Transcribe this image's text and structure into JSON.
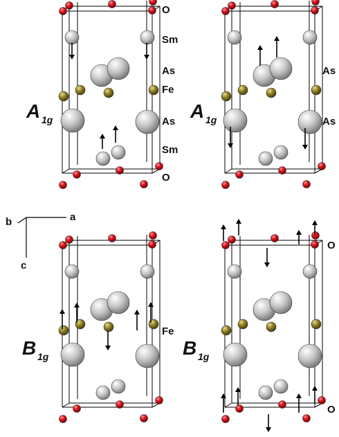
{
  "panels": [
    {
      "mode": {
        "main": "A",
        "sub": "1g"
      },
      "labels": [
        "O",
        "Sm",
        "As",
        "Fe",
        "As",
        "Sm",
        "O"
      ]
    },
    {
      "mode": {
        "main": "A",
        "sub": "1g"
      },
      "labels": [
        "As",
        "As"
      ]
    },
    {
      "mode": {
        "main": "B",
        "sub": "1g"
      },
      "labels": [
        "Fe"
      ]
    },
    {
      "mode": {
        "main": "B",
        "sub": "1g"
      },
      "labels": [
        "O",
        "O"
      ]
    }
  ],
  "axes": {
    "b": "b",
    "a": "a",
    "c": "c"
  },
  "colors": {
    "oxygen": "#e0141e",
    "samarium": "#c8c8c8",
    "arsenic": "#bdbdbd",
    "iron": "#8c7a1e"
  }
}
